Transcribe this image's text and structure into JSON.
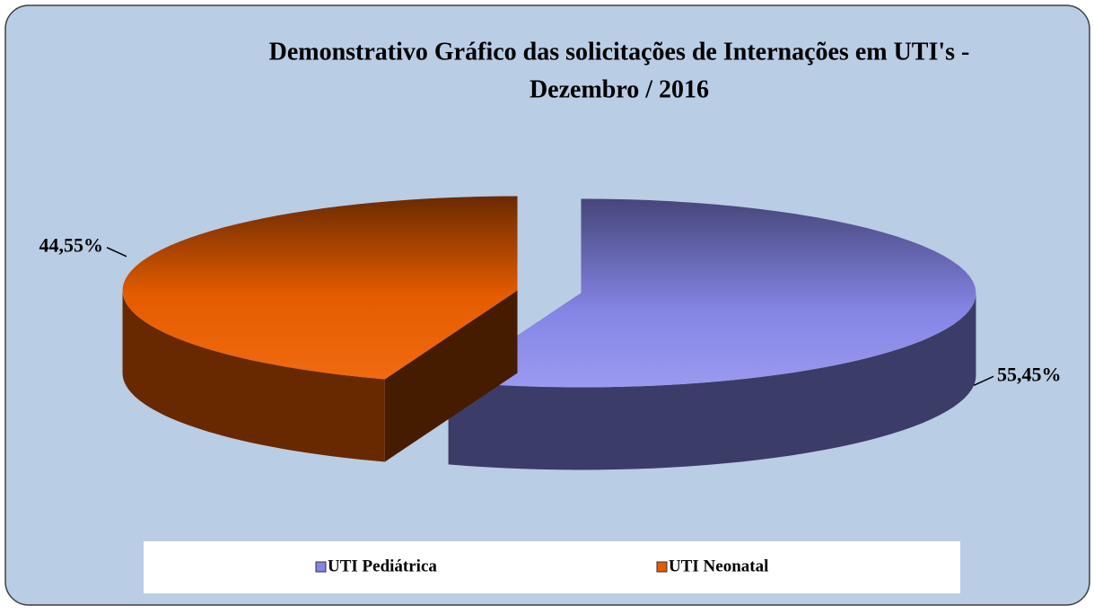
{
  "chart_data": {
    "type": "pie3d",
    "title": [
      "Demonstrativo Gráfico das solicitações de Internações em UTI's -",
      "Dezembro / 2016"
    ],
    "categories": [
      "UTI Pediátrica",
      "UTI Neonatal"
    ],
    "values": [
      55.45,
      44.55
    ],
    "value_labels": [
      "55,45%",
      "44,55%"
    ],
    "colors": [
      "#8585e6",
      "#e65c00"
    ],
    "legend": "bottom"
  }
}
